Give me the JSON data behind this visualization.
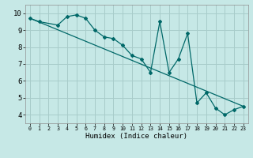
{
  "title": "",
  "xlabel": "Humidex (Indice chaleur)",
  "ylabel": "",
  "bg_color": "#c6e8e6",
  "grid_color": "#a8ccca",
  "line_color": "#006868",
  "xlim": [
    -0.5,
    23.5
  ],
  "ylim": [
    3.5,
    10.5
  ],
  "xticks": [
    0,
    1,
    2,
    3,
    4,
    5,
    6,
    7,
    8,
    9,
    10,
    11,
    12,
    13,
    14,
    15,
    16,
    17,
    18,
    19,
    20,
    21,
    22,
    23
  ],
  "yticks": [
    4,
    5,
    6,
    7,
    8,
    9,
    10
  ],
  "line1_x": [
    0,
    1,
    3,
    4,
    5,
    6,
    7,
    8,
    9,
    10,
    11,
    12,
    13,
    14,
    15,
    16,
    17,
    18,
    19,
    20,
    21,
    22,
    23
  ],
  "line1_y": [
    9.7,
    9.5,
    9.3,
    9.8,
    9.9,
    9.7,
    9.0,
    8.6,
    8.5,
    8.1,
    7.5,
    7.3,
    6.5,
    9.5,
    6.5,
    7.3,
    8.8,
    4.7,
    5.3,
    4.4,
    4.0,
    4.3,
    4.5
  ],
  "line2_x": [
    0,
    23
  ],
  "line2_y": [
    9.7,
    4.5
  ],
  "font_family": "monospace",
  "xlabel_fontsize": 6.5,
  "tick_fontsize_x": 4.8,
  "tick_fontsize_y": 6.5,
  "linewidth": 0.9,
  "markersize": 2.0
}
